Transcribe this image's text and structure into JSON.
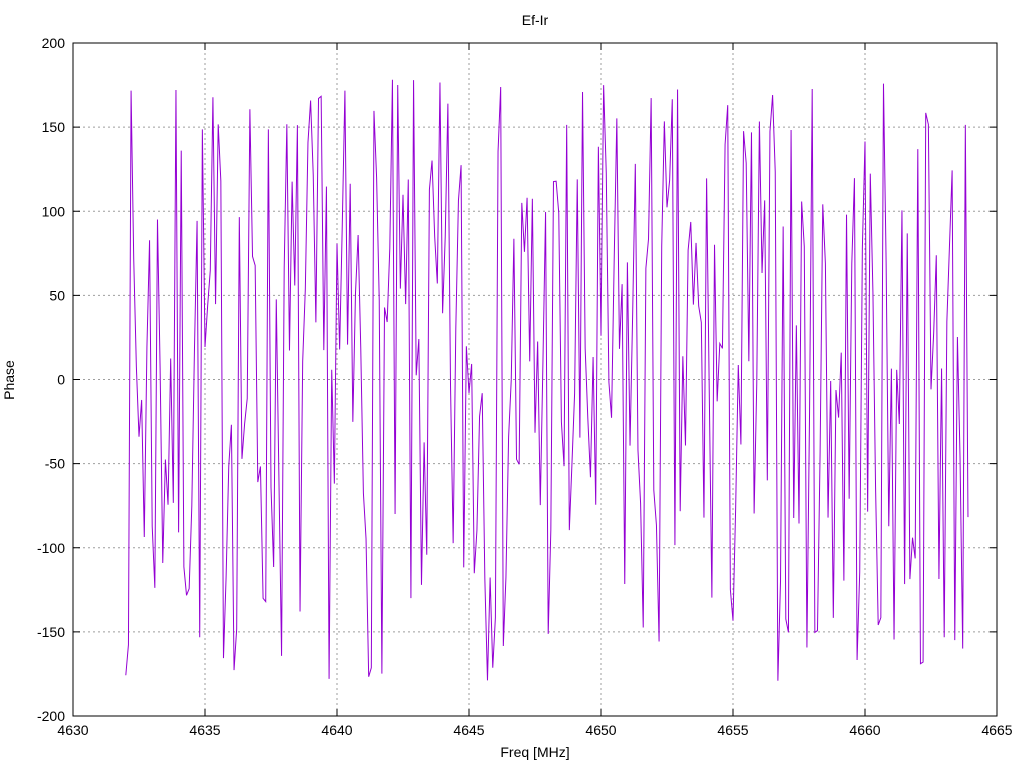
{
  "window": {
    "background": "#ffffff"
  },
  "chart_data": {
    "type": "line",
    "title": "Ef-Ir",
    "xlabel": "Freq [MHz]",
    "ylabel": "Phase",
    "xlim": [
      4630,
      4665
    ],
    "ylim": [
      -200,
      200
    ],
    "x_ticks": [
      4630,
      4635,
      4640,
      4645,
      4650,
      4655,
      4660,
      4665
    ],
    "y_ticks": [
      -200,
      -150,
      -100,
      -50,
      0,
      50,
      100,
      150,
      200
    ],
    "grid": true,
    "legend": "none",
    "axis_color": "#000000",
    "grid_color": "#9e9e9e",
    "text_color": "#000000",
    "series": [
      {
        "name": "Ef-Ir phase",
        "type": "line",
        "color": "#9400D3",
        "x_start": 4632.0,
        "x_end": 4663.9,
        "n_points": 320,
        "y_min": -180,
        "y_max": 180,
        "appearance": "uniformly-distributed random interferometric fringe phase noise spanning -180 to +180 degrees across the whole band",
        "seed": 7
      }
    ]
  }
}
